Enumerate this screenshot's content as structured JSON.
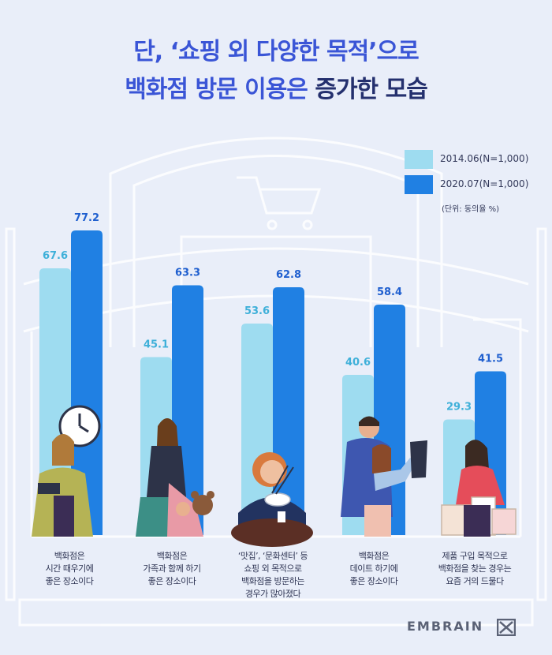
{
  "title": {
    "line1_a": "단, ‘쇼핑 외 다양한 목적’으로",
    "line2_a": "백화점 방문 이용은 ",
    "line2_b": "증가한 모습"
  },
  "legend": {
    "items": [
      {
        "label": "2014.06(N=1,000)",
        "color": "#9edcf0"
      },
      {
        "label": "2020.07(N=1,000)",
        "color": "#2080e3"
      }
    ],
    "unit": "(단위: 동의율 %)"
  },
  "captions": [
    [
      "백화점은",
      "시간 때우기에",
      "좋은 장소이다"
    ],
    [
      "백화점은",
      "가족과 함께 하기",
      "좋은 장소이다"
    ],
    [
      "‘맛집’, ‘문화센터’ 등",
      "쇼핑 외 목적으로",
      "백화점을 방문하는",
      "경우가 많아졌다"
    ],
    [
      "백화점은",
      "데이트 하기에",
      "좋은 장소이다"
    ],
    [
      "제품 구입 목적으로",
      "백화점을 찾는 경우는",
      "요즘 거의 드물다"
    ]
  ],
  "chart_data": {
    "type": "bar",
    "categories": [
      "백화점은 시간 때우기에 좋은 장소이다",
      "백화점은 가족과 함께 하기 좋은 장소이다",
      "‘맛집’, ‘문화센터’ 등 쇼핑 외 목적으로 백화점을 방문하는 경우가 많아졌다",
      "백화점은 데이트 하기에 좋은 장소이다",
      "제품 구입 목적으로 백화점을 찾는 경우는 요즘 거의 드물다"
    ],
    "series": [
      {
        "name": "2014.06(N=1,000)",
        "values": [
          67.6,
          45.1,
          53.6,
          40.6,
          29.3
        ],
        "color": "#9edcf0",
        "label_color": "#3fb0d9"
      },
      {
        "name": "2020.07(N=1,000)",
        "values": [
          77.2,
          63.3,
          62.8,
          58.4,
          41.5
        ],
        "color": "#2080e3",
        "label_color": "#1f5fcf"
      }
    ],
    "ylim": [
      0,
      100
    ],
    "title": "단, ‘쇼핑 외 다양한 목적’으로 백화점 방문 이용은 증가한 모습",
    "xlabel": "",
    "ylabel": "",
    "legend": "top-right",
    "grid": false
  },
  "brand": {
    "name": "EMBRAIN",
    "mark_icon": "embrain-logo-mark"
  }
}
